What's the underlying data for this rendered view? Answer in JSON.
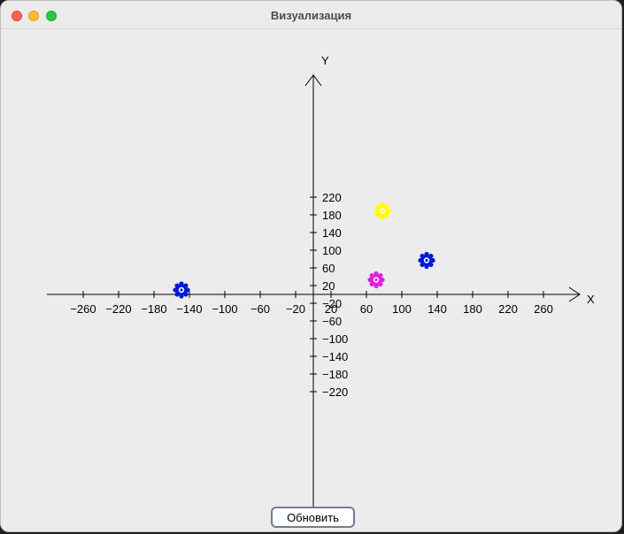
{
  "window": {
    "title": "Визуализация"
  },
  "button": {
    "refresh_label": "Обновить"
  },
  "chart_data": {
    "type": "scatter",
    "xlabel": "X",
    "ylabel": "Y",
    "xlim": [
      -300,
      300
    ],
    "ylim": [
      -230,
      245
    ],
    "x_ticks": [
      -260,
      -220,
      -180,
      -140,
      -100,
      -60,
      -20,
      20,
      60,
      100,
      140,
      180,
      220,
      260
    ],
    "y_ticks": [
      220,
      180,
      140,
      100,
      60,
      20,
      -20,
      -60,
      -100,
      -140,
      -180,
      -220
    ],
    "points": [
      {
        "x": -149,
        "y": 10,
        "color": "#0018d8"
      },
      {
        "x": 71,
        "y": 33,
        "color": "#e020e0"
      },
      {
        "x": 128,
        "y": 77,
        "color": "#0018d8"
      },
      {
        "x": 78,
        "y": 189,
        "color": "#ffff00"
      }
    ]
  }
}
